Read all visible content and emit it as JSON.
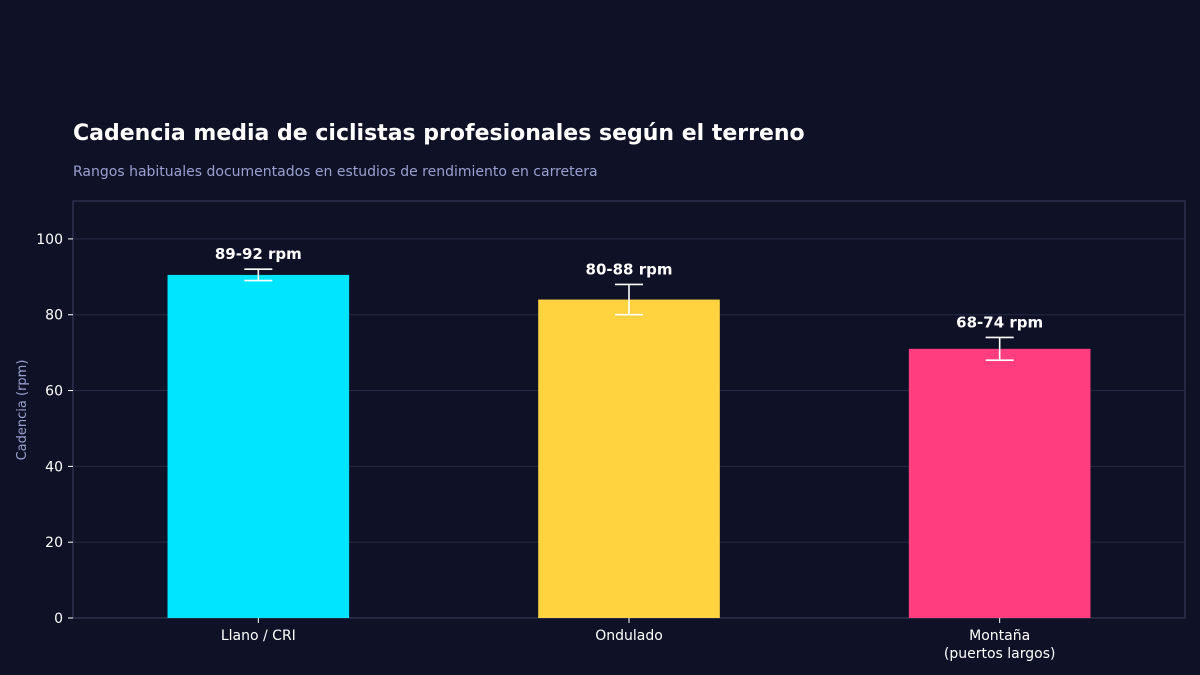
{
  "chart_data": {
    "type": "bar",
    "title": "Cadencia media de ciclistas profesionales según el terreno",
    "subtitle": "Rangos habituales documentados en estudios de rendimiento en carretera",
    "xlabel": "",
    "ylabel": "Cadencia (rpm)",
    "ylim": [
      0,
      110
    ],
    "yticks": [
      0,
      20,
      40,
      60,
      80,
      100
    ],
    "grid": true,
    "categories": [
      [
        "Llano / CRI"
      ],
      [
        "Ondulado"
      ],
      [
        "Montaña",
        "(puertos largos)"
      ]
    ],
    "values": [
      90.5,
      84,
      71
    ],
    "error_low": [
      89,
      80,
      68
    ],
    "error_high": [
      92,
      88,
      74
    ],
    "data_labels": [
      "89-92 rpm",
      "80-88 rpm",
      "68-74 rpm"
    ],
    "colors": [
      "#00e5ff",
      "#ffd23f",
      "#ff3d7f"
    ]
  },
  "theme": {
    "background": "#0f1226",
    "grid_color": "#262a45",
    "axis_color": "#3a3f5e",
    "text_color": "#ffffff",
    "muted_text_color": "#9aa0d0"
  }
}
